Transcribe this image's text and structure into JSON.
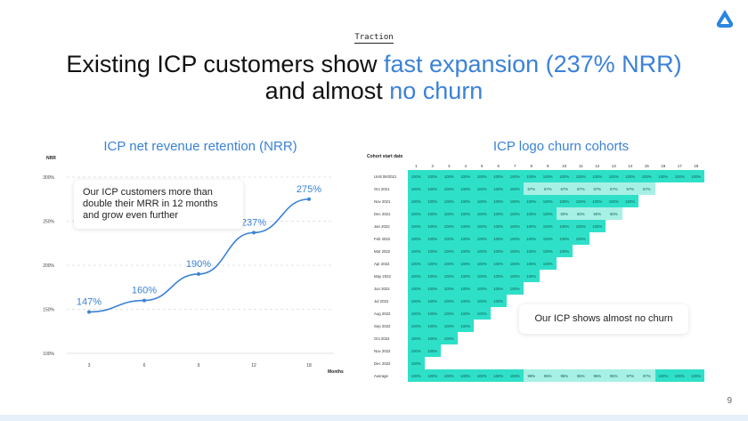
{
  "slide": {
    "tag": "Traction",
    "title_part1": "Existing ICP customers show ",
    "title_accent1": "fast expansion (237% NRR)",
    "title_part2": "and almost ",
    "title_accent2": "no churn",
    "page_number": "9",
    "accent_color": "#3b82d6",
    "logo_icon": "triangle-drop-logo-icon"
  },
  "nrr": {
    "section_title": "ICP net revenue retention (NRR)",
    "callout": "Our ICP customers more than double their MRR in 12 months and grow even further"
  },
  "churn": {
    "section_title": "ICP logo churn cohorts",
    "callout": "Our ICP shows almost no churn",
    "row_axis_label": "Cohort start date"
  },
  "chart_data": [
    {
      "type": "line",
      "title": "ICP net revenue retention (NRR)",
      "ylabel": "NRR",
      "xlabel": "Months",
      "x": [
        3,
        6,
        9,
        12,
        18
      ],
      "x_ticks": [
        "3",
        "6",
        "9",
        "12",
        "18"
      ],
      "y_ticks": [
        "100%",
        "150%",
        "200%",
        "250%",
        "300%"
      ],
      "ylim": [
        100,
        300
      ],
      "grid": true,
      "series": [
        {
          "values": [
            147,
            160,
            190,
            237,
            275
          ],
          "labels": [
            "147%",
            "160%",
            "190%",
            "237%",
            "275%"
          ],
          "color": "#3b82d6"
        }
      ]
    },
    {
      "type": "heatmap",
      "title": "ICP logo churn cohorts",
      "ylabel": "Cohort start date",
      "columns": [
        "1",
        "2",
        "3",
        "4",
        "5",
        "6",
        "7",
        "8",
        "9",
        "10",
        "11",
        "12",
        "13",
        "14",
        "15",
        "16",
        "17",
        "18"
      ],
      "rows": [
        {
          "label": "Until 09/2021",
          "values": [
            "100%",
            "100%",
            "100%",
            "100%",
            "100%",
            "100%",
            "100%",
            "100%",
            "100%",
            "100%",
            "100%",
            "100%",
            "100%",
            "100%",
            "100%",
            "100%",
            "100%",
            "100%"
          ]
        },
        {
          "label": "Oct 2021",
          "values": [
            "100%",
            "100%",
            "100%",
            "100%",
            "100%",
            "100%",
            "100%",
            "67%",
            "67%",
            "67%",
            "67%",
            "67%",
            "67%",
            "67%",
            "67%"
          ]
        },
        {
          "label": "Nov 2021",
          "values": [
            "100%",
            "100%",
            "100%",
            "100%",
            "100%",
            "100%",
            "100%",
            "100%",
            "100%",
            "100%",
            "100%",
            "100%",
            "100%",
            "100%"
          ]
        },
        {
          "label": "Dec 2021",
          "values": [
            "100%",
            "100%",
            "100%",
            "100%",
            "100%",
            "100%",
            "100%",
            "100%",
            "100%",
            "50%",
            "50%",
            "50%",
            "50%"
          ]
        },
        {
          "label": "Jan 2022",
          "values": [
            "100%",
            "100%",
            "100%",
            "100%",
            "100%",
            "100%",
            "100%",
            "100%",
            "100%",
            "100%",
            "100%",
            "100%"
          ]
        },
        {
          "label": "Feb 2022",
          "values": [
            "100%",
            "100%",
            "100%",
            "100%",
            "100%",
            "100%",
            "100%",
            "100%",
            "100%",
            "100%",
            "100%"
          ]
        },
        {
          "label": "Mar 2022",
          "values": [
            "100%",
            "100%",
            "100%",
            "100%",
            "100%",
            "100%",
            "100%",
            "100%",
            "100%",
            "100%"
          ]
        },
        {
          "label": "Apr 2022",
          "values": [
            "100%",
            "100%",
            "100%",
            "100%",
            "100%",
            "100%",
            "100%",
            "100%",
            "100%"
          ]
        },
        {
          "label": "May 2022",
          "values": [
            "100%",
            "100%",
            "100%",
            "100%",
            "100%",
            "100%",
            "100%",
            "100%"
          ]
        },
        {
          "label": "Jun 2022",
          "values": [
            "100%",
            "100%",
            "100%",
            "100%",
            "100%",
            "100%",
            "100%"
          ]
        },
        {
          "label": "Jul 2022",
          "values": [
            "100%",
            "100%",
            "100%",
            "100%",
            "100%",
            "100%"
          ]
        },
        {
          "label": "Aug 2022",
          "values": [
            "100%",
            "100%",
            "100%",
            "100%",
            "100%"
          ]
        },
        {
          "label": "Sep 2022",
          "values": [
            "100%",
            "100%",
            "100%",
            "100%"
          ]
        },
        {
          "label": "Oct 2022",
          "values": [
            "100%",
            "100%",
            "100%"
          ]
        },
        {
          "label": "Nov 2022",
          "values": [
            "100%",
            "100%"
          ]
        },
        {
          "label": "Dec 2022",
          "values": [
            "100%"
          ]
        },
        {
          "label": "Average",
          "values": [
            "100%",
            "100%",
            "100%",
            "100%",
            "100%",
            "100%",
            "100%",
            "99%",
            "96%",
            "96%",
            "96%",
            "95%",
            "95%",
            "97%",
            "97%",
            "100%",
            "100%",
            "100%"
          ]
        }
      ],
      "full_color": "#2fe0c8",
      "partial_color": "#a7f0e5"
    }
  ]
}
